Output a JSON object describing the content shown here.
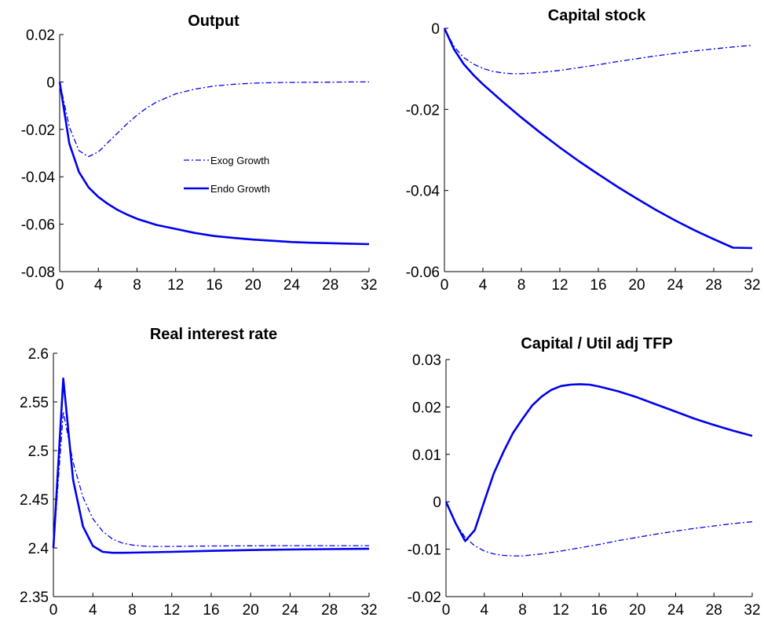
{
  "colors": {
    "series": "#0000ee",
    "axis": "#000000",
    "background": "#ffffff"
  },
  "chart_data": [
    {
      "type": "line",
      "title": "Output",
      "xlabel": "",
      "ylabel": "",
      "xlim": [
        0,
        32
      ],
      "ylim": [
        -0.08,
        0.02
      ],
      "xticks": [
        0,
        4,
        8,
        12,
        16,
        20,
        24,
        28,
        32
      ],
      "xtick_labels": [
        "0",
        "4",
        "8",
        "12",
        "16",
        "20",
        "24",
        "28",
        "32"
      ],
      "yticks": [
        -0.08,
        -0.06,
        -0.04,
        -0.02,
        0,
        0.02
      ],
      "ytick_labels": [
        "-0.08",
        "-0.06",
        "-0.04",
        "-0.02",
        "0",
        "0.02"
      ],
      "legend": {
        "position": "center",
        "entries": [
          "Exog Growth",
          "Endo Growth"
        ]
      },
      "grid": false,
      "series": [
        {
          "name": "Exog Growth",
          "style": "dashdot",
          "x": [
            0,
            1,
            2,
            3,
            4,
            5,
            6,
            7,
            8,
            9,
            10,
            12,
            14,
            16,
            18,
            20,
            22,
            24,
            26,
            28,
            30,
            32
          ],
          "y": [
            0,
            -0.019,
            -0.029,
            -0.0315,
            -0.0295,
            -0.0255,
            -0.0215,
            -0.0175,
            -0.014,
            -0.011,
            -0.0085,
            -0.005,
            -0.003,
            -0.0017,
            -0.001,
            -0.0005,
            -0.0003,
            -0.0002,
            -0.0001,
            -0.0001,
            0,
            0
          ]
        },
        {
          "name": "Endo Growth",
          "style": "solid",
          "x": [
            0,
            1,
            2,
            3,
            4,
            5,
            6,
            7,
            8,
            9,
            10,
            12,
            14,
            16,
            18,
            20,
            22,
            24,
            26,
            28,
            30,
            32
          ],
          "y": [
            0,
            -0.026,
            -0.038,
            -0.0445,
            -0.0485,
            -0.0515,
            -0.054,
            -0.056,
            -0.0577,
            -0.059,
            -0.0603,
            -0.062,
            -0.0637,
            -0.065,
            -0.0658,
            -0.0665,
            -0.067,
            -0.0675,
            -0.0678,
            -0.068,
            -0.0682,
            -0.0684
          ]
        }
      ]
    },
    {
      "type": "line",
      "title": "Capital stock",
      "xlabel": "",
      "ylabel": "",
      "xlim": [
        0,
        32
      ],
      "ylim": [
        -0.06,
        0
      ],
      "xticks": [
        0,
        4,
        8,
        12,
        16,
        20,
        24,
        28,
        32
      ],
      "xtick_labels": [
        "0",
        "4",
        "8",
        "12",
        "16",
        "20",
        "24",
        "28",
        "32"
      ],
      "yticks": [
        -0.06,
        -0.04,
        -0.02,
        0
      ],
      "ytick_labels": [
        "-0.06",
        "-0.04",
        "-0.02",
        "0"
      ],
      "grid": false,
      "series": [
        {
          "name": "Exog Growth",
          "style": "dashdot",
          "x": [
            0,
            1,
            2,
            3,
            4,
            5,
            6,
            7,
            8,
            10,
            12,
            14,
            16,
            18,
            20,
            22,
            24,
            26,
            28,
            30,
            32
          ],
          "y": [
            0,
            -0.0045,
            -0.0072,
            -0.0088,
            -0.0099,
            -0.0106,
            -0.011,
            -0.0112,
            -0.0112,
            -0.0109,
            -0.0104,
            -0.0097,
            -0.009,
            -0.0082,
            -0.0075,
            -0.0068,
            -0.0062,
            -0.0056,
            -0.0051,
            -0.0046,
            -0.0042
          ]
        },
        {
          "name": "Endo Growth",
          "style": "solid",
          "x": [
            0,
            1,
            2,
            3,
            4,
            6,
            8,
            10,
            12,
            14,
            16,
            18,
            20,
            22,
            24,
            26,
            28,
            30,
            32
          ],
          "y": [
            0,
            -0.0052,
            -0.0088,
            -0.0115,
            -0.0138,
            -0.018,
            -0.022,
            -0.0258,
            -0.0294,
            -0.0328,
            -0.036,
            -0.0391,
            -0.042,
            -0.0448,
            -0.0474,
            -0.0498,
            -0.052,
            -0.0541,
            -0.0542
          ]
        }
      ]
    },
    {
      "type": "line",
      "title": "Real interest rate",
      "xlabel": "",
      "ylabel": "",
      "xlim": [
        0,
        32
      ],
      "ylim": [
        2.35,
        2.6
      ],
      "xticks": [
        0,
        4,
        8,
        12,
        16,
        20,
        24,
        28,
        32
      ],
      "xtick_labels": [
        "0",
        "4",
        "8",
        "12",
        "16",
        "20",
        "24",
        "28",
        "32"
      ],
      "yticks": [
        2.35,
        2.4,
        2.45,
        2.5,
        2.55,
        2.6
      ],
      "ytick_labels": [
        "2.35",
        "2.4",
        "2.45",
        "2.5",
        "2.55",
        "2.6"
      ],
      "grid": false,
      "series": [
        {
          "name": "Exog Growth",
          "style": "dashdot",
          "x": [
            0,
            1,
            2,
            3,
            4,
            5,
            6,
            7,
            8,
            9,
            10,
            11,
            12,
            14,
            16,
            20,
            24,
            28,
            32
          ],
          "y": [
            2.4,
            2.54,
            2.488,
            2.452,
            2.43,
            2.417,
            2.409,
            2.405,
            2.403,
            2.402,
            2.4015,
            2.4015,
            2.4015,
            2.4018,
            2.402,
            2.4022,
            2.4023,
            2.4023,
            2.4023
          ]
        },
        {
          "name": "Endo Growth",
          "style": "solid",
          "x": [
            0,
            1,
            2,
            3,
            4,
            5,
            6,
            7,
            8,
            10,
            12,
            16,
            20,
            24,
            28,
            32
          ],
          "y": [
            2.4,
            2.574,
            2.47,
            2.422,
            2.402,
            2.396,
            2.395,
            2.395,
            2.3952,
            2.3956,
            2.396,
            2.397,
            2.3978,
            2.3984,
            2.3988,
            2.3991
          ]
        }
      ]
    },
    {
      "type": "line",
      "title": "Capital / Util adj TFP",
      "xlabel": "",
      "ylabel": "",
      "xlim": [
        0,
        32
      ],
      "ylim": [
        -0.02,
        0.03
      ],
      "xticks": [
        0,
        4,
        8,
        12,
        16,
        20,
        24,
        28,
        32
      ],
      "xtick_labels": [
        "0",
        "4",
        "8",
        "12",
        "16",
        "20",
        "24",
        "28",
        "32"
      ],
      "yticks": [
        -0.02,
        -0.01,
        0,
        0.01,
        0.02,
        0.03
      ],
      "ytick_labels": [
        "-0.02",
        "-0.01",
        "0",
        "0.01",
        "0.02",
        "0.03"
      ],
      "grid": false,
      "series": [
        {
          "name": "Exog Growth",
          "style": "dashdot",
          "x": [
            0,
            1,
            2,
            3,
            4,
            5,
            6,
            7,
            8,
            10,
            12,
            14,
            16,
            18,
            20,
            22,
            24,
            26,
            28,
            30,
            32
          ],
          "y": [
            0,
            -0.0045,
            -0.0075,
            -0.0093,
            -0.0104,
            -0.011,
            -0.0113,
            -0.0114,
            -0.0114,
            -0.011,
            -0.0104,
            -0.0097,
            -0.009,
            -0.0082,
            -0.0075,
            -0.0068,
            -0.0062,
            -0.0056,
            -0.0051,
            -0.0046,
            -0.0042
          ]
        },
        {
          "name": "Endo Growth",
          "style": "solid",
          "x": [
            0,
            1,
            2,
            3,
            4,
            5,
            6,
            7,
            8,
            9,
            10,
            11,
            12,
            13,
            14,
            15,
            16,
            18,
            20,
            22,
            24,
            26,
            28,
            30,
            32
          ],
          "y": [
            0,
            -0.0045,
            -0.0083,
            -0.006,
            0.0001,
            0.006,
            0.0105,
            0.0145,
            0.0175,
            0.0203,
            0.0222,
            0.0236,
            0.0244,
            0.0247,
            0.0248,
            0.0247,
            0.0243,
            0.0233,
            0.022,
            0.0205,
            0.019,
            0.0175,
            0.0162,
            0.015,
            0.0139
          ]
        }
      ]
    }
  ]
}
